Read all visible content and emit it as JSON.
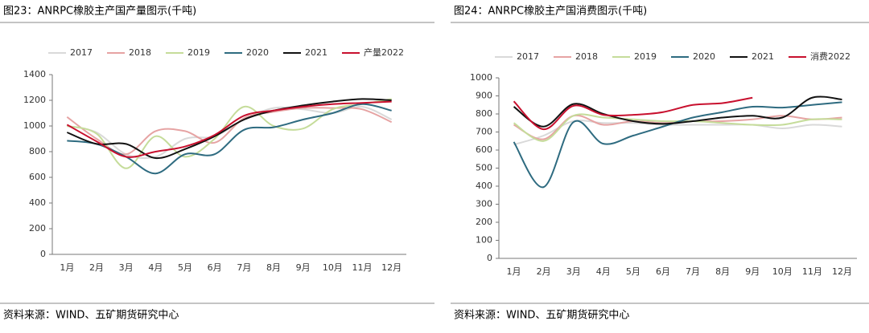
{
  "chart_data": [
    {
      "type": "line",
      "title": "图23：ANRPC橡胶主产国产量图示(千吨)",
      "source": "资料来源：WIND、五矿期货研究中心",
      "categories": [
        "1月",
        "2月",
        "3月",
        "4月",
        "5月",
        "6月",
        "7月",
        "8月",
        "9月",
        "10月",
        "11月",
        "12月"
      ],
      "ylim": [
        0,
        1400
      ],
      "yticks": [
        0,
        200,
        400,
        600,
        800,
        1000,
        1200,
        1400
      ],
      "series": [
        {
          "name": "2017",
          "color": "#d9d9d9",
          "values": [
            1000,
            950,
            780,
            760,
            900,
            920,
            1050,
            1140,
            1130,
            1100,
            1150,
            1050
          ]
        },
        {
          "name": "2018",
          "color": "#e6a3a3",
          "values": [
            1070,
            900,
            780,
            960,
            960,
            870,
            1060,
            1110,
            1140,
            1140,
            1130,
            1030
          ]
        },
        {
          "name": "2019",
          "color": "#c5dc9a",
          "values": [
            1000,
            940,
            670,
            920,
            760,
            900,
            1150,
            1000,
            980,
            1130,
            1170,
            1210
          ]
        },
        {
          "name": "2020",
          "color": "#2e6b80",
          "values": [
            885,
            860,
            760,
            630,
            780,
            780,
            970,
            990,
            1050,
            1100,
            1170,
            1120
          ]
        },
        {
          "name": "2021",
          "color": "#111111",
          "values": [
            950,
            860,
            860,
            750,
            820,
            920,
            1050,
            1120,
            1160,
            1190,
            1210,
            1200
          ]
        },
        {
          "name": "产量2022",
          "color": "#c8102e",
          "values": [
            1010,
            880,
            760,
            800,
            840,
            930,
            1080,
            1120,
            1150,
            1170,
            1180,
            1190
          ]
        }
      ]
    },
    {
      "type": "line",
      "title": "图24：ANRPC橡胶主产国消费图示(千吨)",
      "source": "资料来源：WIND、五矿期货研究中心",
      "categories": [
        "1月",
        "2月",
        "3月",
        "4月",
        "5月",
        "6月",
        "7月",
        "8月",
        "9月",
        "10月",
        "11月",
        "12月"
      ],
      "ylim": [
        0,
        1000
      ],
      "yticks": [
        0,
        100,
        200,
        300,
        400,
        500,
        600,
        700,
        800,
        900,
        1000
      ],
      "series": [
        {
          "name": "2017",
          "color": "#d9d9d9",
          "values": [
            630,
            680,
            760,
            750,
            750,
            740,
            740,
            740,
            740,
            720,
            740,
            730
          ]
        },
        {
          "name": "2018",
          "color": "#e6a3a3",
          "values": [
            740,
            660,
            790,
            740,
            760,
            750,
            760,
            760,
            770,
            790,
            770,
            780
          ]
        },
        {
          "name": "2019",
          "color": "#c5dc9a",
          "values": [
            750,
            650,
            790,
            780,
            770,
            760,
            760,
            750,
            740,
            740,
            770,
            770
          ]
        },
        {
          "name": "2020",
          "color": "#2e6b80",
          "values": [
            645,
            395,
            755,
            635,
            680,
            730,
            780,
            810,
            840,
            835,
            850,
            865
          ]
        },
        {
          "name": "2021",
          "color": "#111111",
          "values": [
            840,
            730,
            855,
            800,
            760,
            745,
            760,
            780,
            790,
            780,
            890,
            880
          ]
        },
        {
          "name": "消费2022",
          "color": "#c8102e",
          "values": [
            870,
            715,
            845,
            795,
            795,
            810,
            850,
            860,
            890,
            null,
            null,
            null
          ]
        }
      ]
    }
  ]
}
